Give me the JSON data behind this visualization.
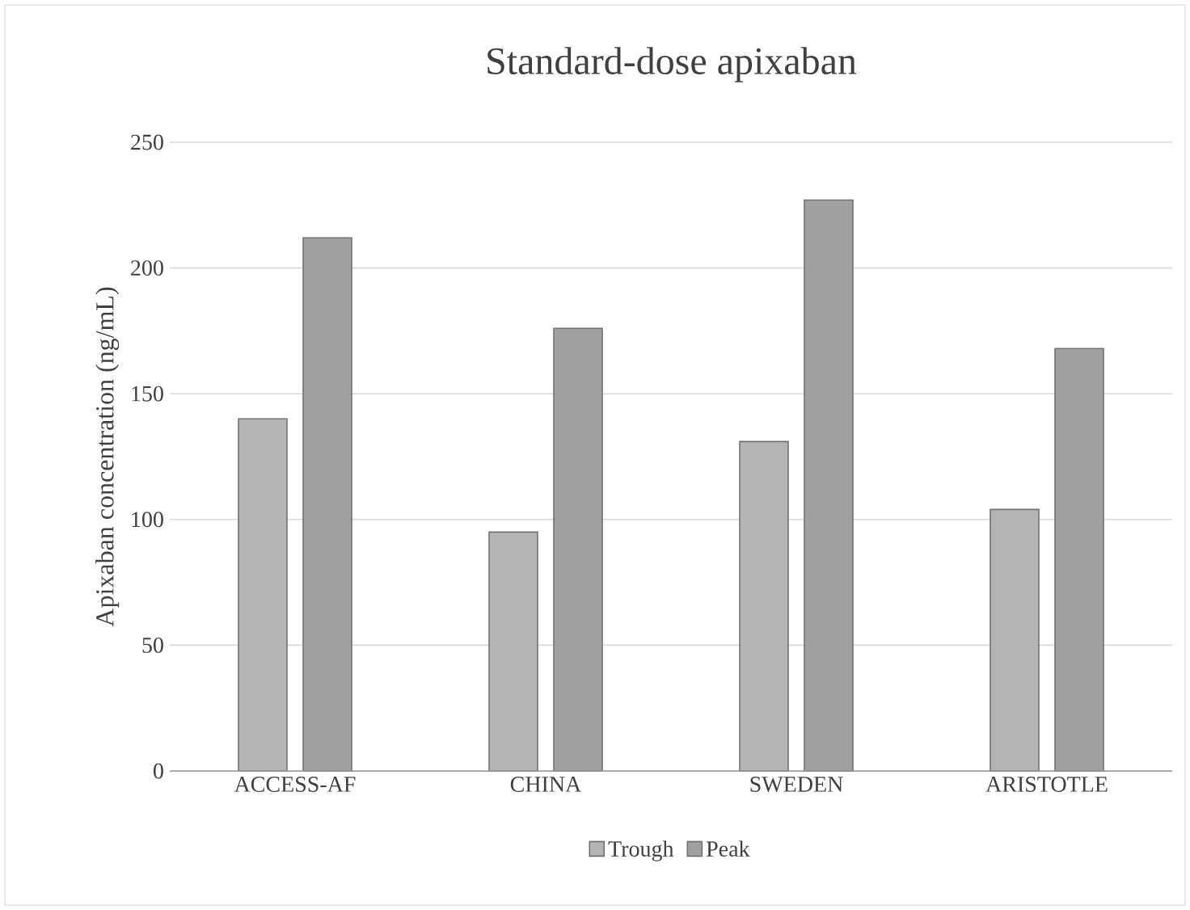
{
  "chart_data": {
    "type": "bar",
    "title": "Standard-dose apixaban",
    "ylabel": "Apixaban concentration (ng/mL)",
    "categories": [
      "ACCESS-AF",
      "CHINA",
      "SWEDEN",
      "ARISTOTLE"
    ],
    "series": [
      {
        "name": "Trough",
        "color": "#b4b4b4",
        "values": [
          140,
          95,
          131,
          104
        ]
      },
      {
        "name": "Peak",
        "color": "#a0a0a0",
        "values": [
          212,
          176,
          227,
          168
        ]
      }
    ],
    "ylim": [
      0,
      250
    ],
    "yticks": [
      0,
      50,
      100,
      150,
      200,
      250
    ],
    "grid": "y",
    "legend": "bottom"
  }
}
